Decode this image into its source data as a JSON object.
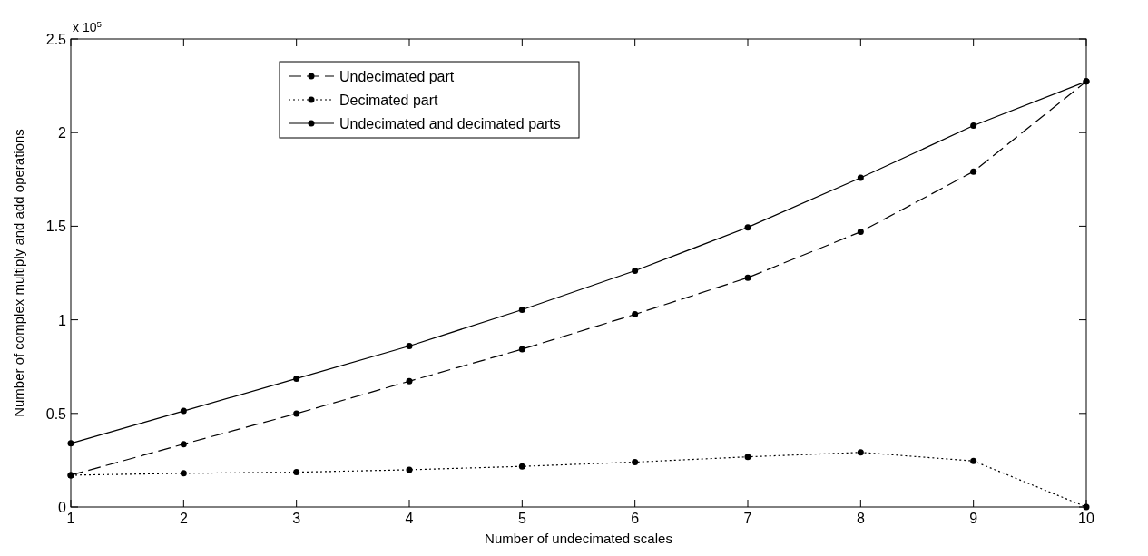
{
  "chart_data": {
    "type": "line",
    "xlabel": "Number of undecimated scales",
    "ylabel": "Number of complex multiply and add operations",
    "annotations": [
      "x 10$^{5}$"
    ],
    "x": [
      1,
      2,
      3,
      4,
      5,
      6,
      7,
      8,
      9,
      10
    ],
    "series": [
      {
        "name": "Undecimated part",
        "color": "#000000",
        "line_style": "dashed",
        "values": [
          0.17,
          0.336,
          0.499,
          0.672,
          0.843,
          1.029,
          1.225,
          1.47,
          1.792,
          2.273
        ]
      },
      {
        "name": "Decimated part",
        "color": "#000000",
        "line_style": "dotted",
        "values": [
          0.17,
          0.18,
          0.186,
          0.199,
          0.217,
          0.24,
          0.268,
          0.292,
          0.246,
          0
        ]
      },
      {
        "name": "Undecimated and decimated parts",
        "color": "#000000",
        "line_style": "solid",
        "values": [
          0.34,
          0.513,
          0.686,
          0.86,
          1.054,
          1.262,
          1.494,
          1.759,
          2.037,
          2.273
        ]
      }
    ],
    "xlim": [
      1,
      10
    ],
    "xticks": [
      1,
      2,
      3,
      4,
      5,
      6,
      7,
      8,
      9,
      10
    ],
    "ylim": [
      0,
      2.5
    ],
    "yticks": [
      0,
      0.5,
      1,
      1.5,
      2,
      2.5
    ],
    "marker": "circle",
    "legend": "top left",
    "grid": false
  }
}
